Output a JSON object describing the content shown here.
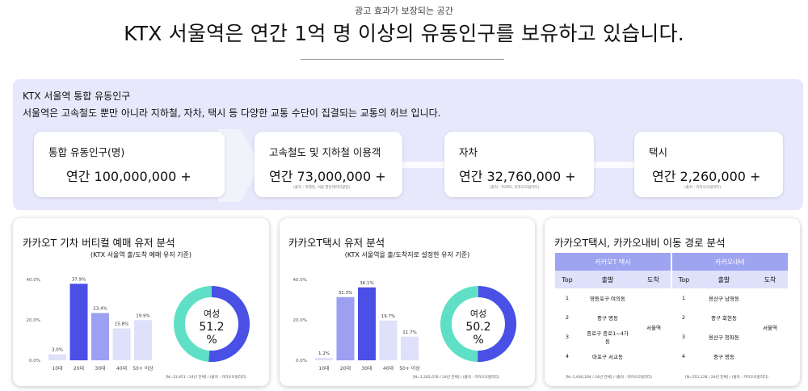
{
  "eyebrow": "광고 효과가 보장되는 공간",
  "headline": "KTX 서울역은 연간 1억 명 이상의 유동인구를 보유하고 있습니다.",
  "top": {
    "title": "KTX 서울역 통합 유동인구",
    "description": "서울역은 고속철도 뿐만 아니라 지하철, 자차, 택시 등 다양한 교통 수단이 집결되는 교통의 허브 입니다.",
    "stats": [
      {
        "label": "통합 유동인구(명)",
        "value": "연간 100,000,000 +",
        "source": ""
      },
      {
        "label": "고속철도 및 지하철 이용객",
        "value": "연간 73,000,000 +",
        "source": "(출처 : 코레일, 서울 열린데이터광장)"
      },
      {
        "label": "자차",
        "value": "연간 32,760,000 +",
        "source": "(출처 : TOPIS, 카카오모빌리티)"
      },
      {
        "label": "택시",
        "value": "연간 2,260,000 +",
        "source": "(출처 : 카카오모빌리티)"
      }
    ]
  },
  "cards": [
    {
      "title": "카카오T 기차 버티컬 예매 유저 분석",
      "subtitle": "(KTX 서울역 출/도착 예매 유저 기준)",
      "footnote": "[N=33,951 / 24년 전체] / (출처 : 카카오모빌리티)",
      "donut_label": "여성",
      "donut_value": "51.2",
      "donut_unit": "%"
    },
    {
      "title": "카카오T택시 유저 분석",
      "subtitle": "(KTX 서울역을 출/도착지로 설정한 유저 기준)",
      "footnote": "[N=1,202,078 / 24년 전체] / (출처 : 카카오모빌리티)",
      "donut_label": "여성",
      "donut_value": "50.2",
      "donut_unit": "%"
    },
    {
      "title": "카카오T택시, 카카오내비 이동 경로 분석",
      "footnote_left": "[N=1,640,204 / 24년 전체] / (출처 : 카카오모빌리티)",
      "footnote_right": "[N=551,128 / 24년 전체] / (출처 : 카카오모빌리티)"
    }
  ],
  "route_table": {
    "groups": [
      "카카오T 택시",
      "카카오내비"
    ],
    "headers": [
      "Top",
      "출발",
      "도착",
      "Top",
      "출발",
      "도착"
    ],
    "destination": "서울역",
    "left_rows": [
      {
        "rank": "1",
        "origin": "영등포구 여의동"
      },
      {
        "rank": "2",
        "origin": "중구 명동"
      },
      {
        "rank": "3",
        "origin": "종로구 종로1~4가동"
      },
      {
        "rank": "4",
        "origin": "마포구 서교동"
      }
    ],
    "right_rows": [
      {
        "rank": "1",
        "origin": "용산구 남영동"
      },
      {
        "rank": "2",
        "origin": "중구 회현동"
      },
      {
        "rank": "3",
        "origin": "용산구 청파동"
      },
      {
        "rank": "4",
        "origin": "중구 명동"
      }
    ]
  },
  "chart_data": [
    {
      "type": "bar",
      "categories": [
        "10대",
        "20대",
        "30대",
        "40대",
        "50+ 이상"
      ],
      "values": [
        3.0,
        37.9,
        23.4,
        15.8,
        19.9
      ],
      "value_labels": [
        "3.0%",
        "37.9%",
        "23.4%",
        "15.8%",
        "19.9%"
      ],
      "yticks": [
        "0.0%",
        "20.0%",
        "40.0%"
      ],
      "ylim": [
        0,
        40
      ],
      "colors": [
        "#dfe1fa",
        "#4a4fe6",
        "#9c9ff2",
        "#dfe1fa",
        "#dfe1fa"
      ]
    },
    {
      "type": "pie",
      "categories": [
        "여성",
        "남성"
      ],
      "values": [
        51.2,
        48.8
      ],
      "colors": [
        "#4a4fe6",
        "#5fe0c6"
      ]
    },
    {
      "type": "bar",
      "categories": [
        "10대",
        "20대",
        "30대",
        "40대",
        "50+ 이상"
      ],
      "values": [
        1.2,
        31.3,
        36.1,
        19.7,
        11.7
      ],
      "value_labels": [
        "1.2%",
        "31.3%",
        "36.1%",
        "19.7%",
        "11.7%"
      ],
      "yticks": [
        "0.0%",
        "20.0%",
        "40.0%"
      ],
      "ylim": [
        0,
        40
      ],
      "colors": [
        "#dfe1fa",
        "#9c9ff2",
        "#4a4fe6",
        "#dfe1fa",
        "#dfe1fa"
      ]
    },
    {
      "type": "pie",
      "categories": [
        "여성",
        "남성"
      ],
      "values": [
        50.2,
        49.8
      ],
      "colors": [
        "#4a4fe6",
        "#5fe0c6"
      ]
    }
  ],
  "colors": {
    "panel": "#e7e8fb",
    "accent": "#4a4fe6",
    "teal": "#5fe0c6",
    "table_group": "#9fa4f0",
    "table_header": "#dfe1fb"
  }
}
